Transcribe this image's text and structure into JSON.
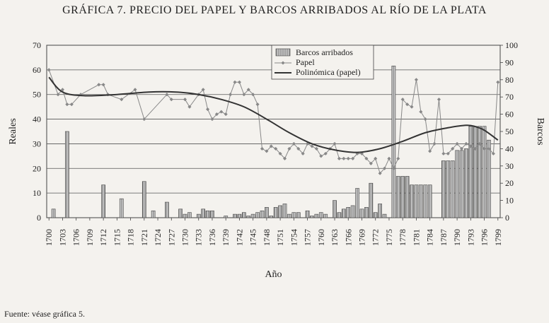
{
  "chart_data": {
    "type": "bar",
    "title": "GRÁFICA 7. PRECIO DEL PAPEL Y BARCOS ARRIBADOS AL RÍO DE LA PLATA",
    "xlabel": "Año",
    "ylabel_left": "Reales",
    "ylabel_right": "Barcos",
    "ylim_left": [
      0,
      70
    ],
    "ylim_right": [
      0,
      100
    ],
    "yticks_left": [
      "0",
      "10",
      "20",
      "30",
      "40",
      "50",
      "60",
      "70"
    ],
    "yticks_right": [
      "0",
      "10",
      "20",
      "30",
      "40",
      "50",
      "60",
      "70",
      "80",
      "90",
      "100"
    ],
    "xlim": [
      1700,
      1799
    ],
    "xticks": [
      "1700",
      "1703",
      "1706",
      "1709",
      "1712",
      "1715",
      "1718",
      "1721",
      "1724",
      "1727",
      "1730",
      "1733",
      "1736",
      "1739",
      "1742",
      "1745",
      "1748",
      "1751",
      "1754",
      "1757",
      "1760",
      "1763",
      "1766",
      "1769",
      "1772",
      "1775",
      "1778",
      "1781",
      "1784",
      "1787",
      "1790",
      "1793",
      "1796",
      "1799"
    ],
    "grid": true,
    "legend": {
      "placement": "top-center",
      "entries": [
        "Barcos arribados",
        "Papel",
        "Polinómica (papel)"
      ]
    },
    "series": [
      {
        "name": "Barcos arribados",
        "axis": "right",
        "type": "bar",
        "x": [
          1701,
          1704,
          1712,
          1716,
          1721,
          1723,
          1726,
          1729,
          1730,
          1731,
          1733,
          1734,
          1735,
          1736,
          1739,
          1741,
          1742,
          1743,
          1744,
          1745,
          1746,
          1747,
          1748,
          1749,
          1750,
          1751,
          1752,
          1753,
          1754,
          1755,
          1757,
          1758,
          1759,
          1760,
          1761,
          1763,
          1764,
          1765,
          1766,
          1767,
          1768,
          1769,
          1770,
          1771,
          1772,
          1773,
          1774,
          1776,
          1777,
          1778,
          1779,
          1780,
          1781,
          1782,
          1783,
          1784,
          1787,
          1788,
          1789,
          1790,
          1791,
          1792,
          1793,
          1794,
          1795,
          1796,
          1797
        ],
        "values": [
          5,
          50,
          19,
          11,
          21,
          4,
          9,
          5,
          2,
          3,
          2,
          5,
          4,
          4,
          1,
          2,
          2,
          3,
          1,
          2,
          3,
          4,
          6,
          1,
          6,
          7,
          8,
          2,
          3,
          3,
          4,
          1,
          2,
          3,
          2,
          10,
          3,
          5,
          6,
          7,
          17,
          5,
          6,
          20,
          3,
          8,
          2,
          88,
          24,
          24,
          24,
          19,
          19,
          19,
          19,
          19,
          33,
          33,
          33,
          39,
          39,
          40,
          53,
          53,
          53,
          53,
          45
        ]
      },
      {
        "name": "Papel",
        "axis": "left",
        "type": "line",
        "x": [
          1700,
          1702,
          1703,
          1704,
          1705,
          1707,
          1711,
          1712,
          1713,
          1716,
          1719,
          1721,
          1726,
          1727,
          1730,
          1731,
          1733,
          1734,
          1735,
          1736,
          1737,
          1738,
          1739,
          1740,
          1741,
          1742,
          1743,
          1744,
          1745,
          1746,
          1747,
          1748,
          1749,
          1750,
          1751,
          1752,
          1753,
          1754,
          1755,
          1756,
          1757,
          1758,
          1759,
          1760,
          1761,
          1762,
          1763,
          1764,
          1765,
          1766,
          1767,
          1768,
          1769,
          1770,
          1771,
          1772,
          1773,
          1774,
          1775,
          1776,
          1777,
          1778,
          1779,
          1780,
          1781,
          1782,
          1783,
          1784,
          1785,
          1786,
          1787,
          1788,
          1789,
          1790,
          1791,
          1792,
          1793,
          1794,
          1795,
          1796,
          1797,
          1798,
          1799
        ],
        "values": [
          60,
          50,
          52,
          46,
          46,
          50,
          54,
          54,
          50,
          48,
          52,
          40,
          50,
          48,
          48,
          45,
          50,
          52,
          44,
          40,
          42,
          43,
          42,
          50,
          55,
          55,
          50,
          52,
          50,
          46,
          28,
          27,
          29,
          28,
          26,
          24,
          28,
          30,
          28,
          26,
          30,
          29,
          28,
          25,
          26,
          28,
          30,
          24,
          24,
          24,
          24,
          26,
          26,
          24,
          22,
          24,
          18,
          20,
          24,
          20,
          24,
          48,
          46,
          45,
          56,
          43,
          40,
          27,
          30,
          48,
          26,
          26,
          28,
          30,
          28,
          30,
          29,
          28,
          30,
          28,
          28,
          26,
          55
        ]
      },
      {
        "name": "Polinómica (papel)",
        "axis": "left",
        "type": "trend",
        "x": [
          1700,
          1703,
          1708,
          1715,
          1722,
          1728,
          1733,
          1738,
          1743,
          1748,
          1753,
          1758,
          1763,
          1768,
          1773,
          1778,
          1783,
          1788,
          1792,
          1794,
          1796,
          1799
        ],
        "values": [
          57,
          51,
          49.5,
          50,
          51,
          51,
          50,
          48,
          45,
          40,
          34.5,
          30,
          27.5,
          26.5,
          28,
          31,
          34.5,
          36.5,
          37.5,
          37,
          35.5,
          31.5
        ]
      }
    ],
    "colors": {
      "bars": "#9a9a9a",
      "papel": "#888888",
      "trend": "#333333"
    }
  },
  "source_note": "Fuente: véase gráfica 5."
}
